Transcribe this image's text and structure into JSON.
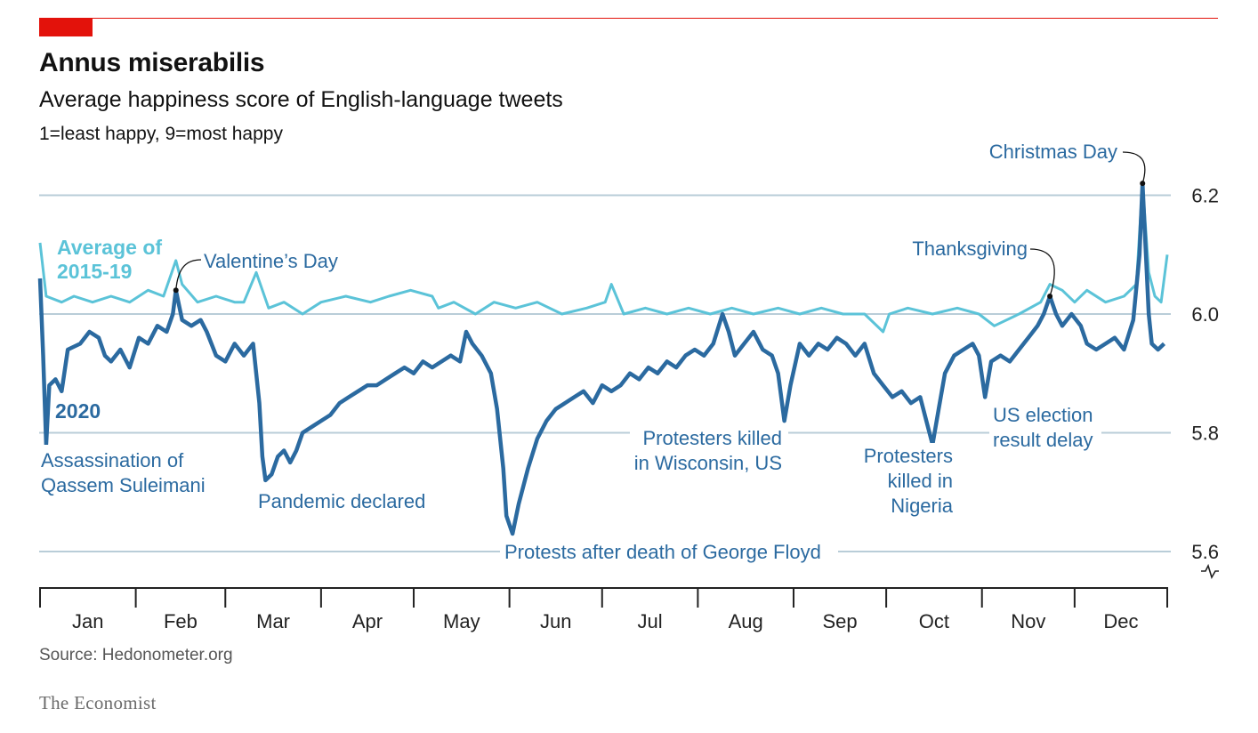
{
  "header": {
    "title": "Annus miserabilis",
    "subtitle": "Average happiness score of English-language tweets",
    "scale_note": "1=least happy, 9=most happy"
  },
  "footer": {
    "source": "Source: Hedonometer.org",
    "brand": "The Economist"
  },
  "colors": {
    "accent": "#e3120b",
    "series_2020": "#2b6aa0",
    "series_avg": "#5bc3d8",
    "gridline": "#b9cdd8",
    "axis": "#222222",
    "annotation_text": "#2b6aa0"
  },
  "chart_data": {
    "type": "line",
    "x_unit": "day of year",
    "xlim": [
      1,
      366
    ],
    "ylim": [
      5.53,
      6.27
    ],
    "y_ticks": [
      5.6,
      5.8,
      6.0,
      6.2
    ],
    "y_tick_labels": [
      "5.6",
      "5.8",
      "6.0",
      "6.2"
    ],
    "y_axis_broken": true,
    "grid": true,
    "months": [
      "Jan",
      "Feb",
      "Mar",
      "Apr",
      "May",
      "Jun",
      "Jul",
      "Aug",
      "Sep",
      "Oct",
      "Nov",
      "Dec"
    ],
    "series": [
      {
        "name": "Average of 2015-19",
        "key": "avg",
        "points": [
          [
            1,
            6.12
          ],
          [
            3,
            6.03
          ],
          [
            8,
            6.02
          ],
          [
            12,
            6.03
          ],
          [
            18,
            6.02
          ],
          [
            24,
            6.03
          ],
          [
            30,
            6.02
          ],
          [
            36,
            6.04
          ],
          [
            41,
            6.03
          ],
          [
            45,
            6.09
          ],
          [
            47,
            6.05
          ],
          [
            52,
            6.02
          ],
          [
            58,
            6.03
          ],
          [
            64,
            6.02
          ],
          [
            67,
            6.02
          ],
          [
            71,
            6.07
          ],
          [
            75,
            6.01
          ],
          [
            80,
            6.02
          ],
          [
            86,
            6.0
          ],
          [
            92,
            6.02
          ],
          [
            100,
            6.03
          ],
          [
            108,
            6.02
          ],
          [
            114,
            6.03
          ],
          [
            121,
            6.04
          ],
          [
            128,
            6.03
          ],
          [
            130,
            6.01
          ],
          [
            135,
            6.02
          ],
          [
            142,
            6.0
          ],
          [
            148,
            6.02
          ],
          [
            155,
            6.01
          ],
          [
            162,
            6.02
          ],
          [
            170,
            6.0
          ],
          [
            178,
            6.01
          ],
          [
            184,
            6.02
          ],
          [
            186,
            6.05
          ],
          [
            190,
            6.0
          ],
          [
            197,
            6.01
          ],
          [
            204,
            6.0
          ],
          [
            211,
            6.01
          ],
          [
            218,
            6.0
          ],
          [
            225,
            6.01
          ],
          [
            232,
            6.0
          ],
          [
            240,
            6.01
          ],
          [
            247,
            6.0
          ],
          [
            254,
            6.01
          ],
          [
            261,
            6.0
          ],
          [
            268,
            6.0
          ],
          [
            274,
            5.97
          ],
          [
            276,
            6.0
          ],
          [
            282,
            6.01
          ],
          [
            290,
            6.0
          ],
          [
            298,
            6.01
          ],
          [
            305,
            6.0
          ],
          [
            310,
            5.98
          ],
          [
            318,
            6.0
          ],
          [
            325,
            6.02
          ],
          [
            328,
            6.05
          ],
          [
            332,
            6.04
          ],
          [
            336,
            6.02
          ],
          [
            340,
            6.04
          ],
          [
            346,
            6.02
          ],
          [
            352,
            6.03
          ],
          [
            356,
            6.05
          ],
          [
            358,
            6.22
          ],
          [
            360,
            6.07
          ],
          [
            362,
            6.03
          ],
          [
            364,
            6.02
          ],
          [
            366,
            6.1
          ]
        ]
      },
      {
        "name": "2020",
        "key": "y2020",
        "points": [
          [
            1,
            6.06
          ],
          [
            2,
            5.93
          ],
          [
            3,
            5.78
          ],
          [
            4,
            5.88
          ],
          [
            6,
            5.89
          ],
          [
            8,
            5.87
          ],
          [
            10,
            5.94
          ],
          [
            14,
            5.95
          ],
          [
            17,
            5.97
          ],
          [
            20,
            5.96
          ],
          [
            22,
            5.93
          ],
          [
            24,
            5.92
          ],
          [
            27,
            5.94
          ],
          [
            30,
            5.91
          ],
          [
            33,
            5.96
          ],
          [
            36,
            5.95
          ],
          [
            39,
            5.98
          ],
          [
            42,
            5.97
          ],
          [
            44,
            6.0
          ],
          [
            45,
            6.04
          ],
          [
            47,
            5.99
          ],
          [
            50,
            5.98
          ],
          [
            53,
            5.99
          ],
          [
            55,
            5.97
          ],
          [
            58,
            5.93
          ],
          [
            61,
            5.92
          ],
          [
            64,
            5.95
          ],
          [
            67,
            5.93
          ],
          [
            70,
            5.95
          ],
          [
            72,
            5.85
          ],
          [
            73,
            5.76
          ],
          [
            74,
            5.72
          ],
          [
            76,
            5.73
          ],
          [
            78,
            5.76
          ],
          [
            80,
            5.77
          ],
          [
            82,
            5.75
          ],
          [
            84,
            5.77
          ],
          [
            86,
            5.8
          ],
          [
            89,
            5.81
          ],
          [
            92,
            5.82
          ],
          [
            95,
            5.83
          ],
          [
            98,
            5.85
          ],
          [
            101,
            5.86
          ],
          [
            104,
            5.87
          ],
          [
            107,
            5.88
          ],
          [
            110,
            5.88
          ],
          [
            113,
            5.89
          ],
          [
            116,
            5.9
          ],
          [
            119,
            5.91
          ],
          [
            122,
            5.9
          ],
          [
            125,
            5.92
          ],
          [
            128,
            5.91
          ],
          [
            131,
            5.92
          ],
          [
            134,
            5.93
          ],
          [
            137,
            5.92
          ],
          [
            139,
            5.97
          ],
          [
            141,
            5.95
          ],
          [
            144,
            5.93
          ],
          [
            147,
            5.9
          ],
          [
            149,
            5.84
          ],
          [
            151,
            5.74
          ],
          [
            152,
            5.66
          ],
          [
            154,
            5.63
          ],
          [
            156,
            5.68
          ],
          [
            159,
            5.74
          ],
          [
            162,
            5.79
          ],
          [
            165,
            5.82
          ],
          [
            168,
            5.84
          ],
          [
            171,
            5.85
          ],
          [
            174,
            5.86
          ],
          [
            177,
            5.87
          ],
          [
            180,
            5.85
          ],
          [
            183,
            5.88
          ],
          [
            186,
            5.87
          ],
          [
            189,
            5.88
          ],
          [
            192,
            5.9
          ],
          [
            195,
            5.89
          ],
          [
            198,
            5.91
          ],
          [
            201,
            5.9
          ],
          [
            204,
            5.92
          ],
          [
            207,
            5.91
          ],
          [
            210,
            5.93
          ],
          [
            213,
            5.94
          ],
          [
            216,
            5.93
          ],
          [
            219,
            5.95
          ],
          [
            222,
            6.0
          ],
          [
            224,
            5.97
          ],
          [
            226,
            5.93
          ],
          [
            229,
            5.95
          ],
          [
            232,
            5.97
          ],
          [
            235,
            5.94
          ],
          [
            238,
            5.93
          ],
          [
            240,
            5.9
          ],
          [
            242,
            5.82
          ],
          [
            244,
            5.88
          ],
          [
            247,
            5.95
          ],
          [
            250,
            5.93
          ],
          [
            253,
            5.95
          ],
          [
            256,
            5.94
          ],
          [
            259,
            5.96
          ],
          [
            262,
            5.95
          ],
          [
            265,
            5.93
          ],
          [
            268,
            5.95
          ],
          [
            271,
            5.9
          ],
          [
            274,
            5.88
          ],
          [
            277,
            5.86
          ],
          [
            280,
            5.87
          ],
          [
            283,
            5.85
          ],
          [
            286,
            5.86
          ],
          [
            288,
            5.82
          ],
          [
            290,
            5.78
          ],
          [
            292,
            5.84
          ],
          [
            294,
            5.9
          ],
          [
            297,
            5.93
          ],
          [
            300,
            5.94
          ],
          [
            303,
            5.95
          ],
          [
            305,
            5.93
          ],
          [
            307,
            5.86
          ],
          [
            309,
            5.92
          ],
          [
            312,
            5.93
          ],
          [
            315,
            5.92
          ],
          [
            318,
            5.94
          ],
          [
            321,
            5.96
          ],
          [
            324,
            5.98
          ],
          [
            326,
            6.0
          ],
          [
            328,
            6.03
          ],
          [
            330,
            6.0
          ],
          [
            332,
            5.98
          ],
          [
            335,
            6.0
          ],
          [
            338,
            5.98
          ],
          [
            340,
            5.95
          ],
          [
            343,
            5.94
          ],
          [
            346,
            5.95
          ],
          [
            349,
            5.96
          ],
          [
            352,
            5.94
          ],
          [
            355,
            5.99
          ],
          [
            357,
            6.1
          ],
          [
            358,
            6.22
          ],
          [
            360,
            6.0
          ],
          [
            361,
            5.95
          ],
          [
            363,
            5.94
          ],
          [
            365,
            5.95
          ]
        ]
      }
    ],
    "labels": {
      "avg_series": "Average of\n2015-19",
      "series_2020": "2020"
    },
    "annotations": [
      {
        "key": "valentine",
        "text": "Valentine’s Day",
        "x": 45,
        "y": 6.04
      },
      {
        "key": "christmas",
        "text": "Christmas Day",
        "x": 358,
        "y": 6.22
      },
      {
        "key": "thanksgiving",
        "text": "Thanksgiving",
        "x": 328,
        "y": 6.03
      },
      {
        "key": "suleimani",
        "text": "Assassination of\nQassem Suleimani",
        "x": 3,
        "y": 5.78
      },
      {
        "key": "pandemic",
        "text": "Pandemic declared",
        "x": 74,
        "y": 5.72
      },
      {
        "key": "floyd",
        "text": "Protests after death of George Floyd",
        "x": 154,
        "y": 5.63
      },
      {
        "key": "wisconsin",
        "text": "Protesters killed\nin Wisconsin, US",
        "x": 242,
        "y": 5.82
      },
      {
        "key": "nigeria",
        "text": "Protesters\nkilled in\nNigeria",
        "x": 290,
        "y": 5.78
      },
      {
        "key": "election",
        "text": "US election\nresult delay",
        "x": 307,
        "y": 5.86
      }
    ]
  }
}
